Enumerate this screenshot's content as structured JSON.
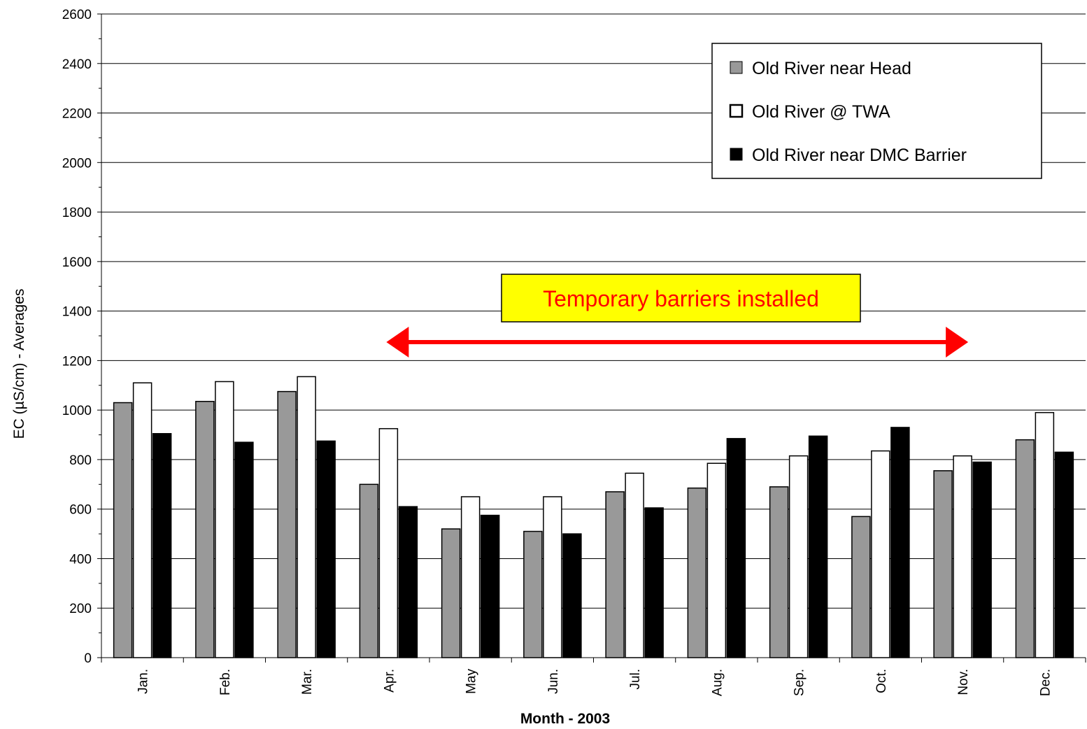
{
  "chart_data": {
    "type": "bar",
    "categories": [
      "Jan.",
      "Feb.",
      "Mar.",
      "Apr.",
      "May",
      "Jun.",
      "Jul.",
      "Aug.",
      "Sep.",
      "Oct.",
      "Nov.",
      "Dec."
    ],
    "series": [
      {
        "name": "Old River near Head",
        "color": "#999999",
        "values": [
          1030,
          1035,
          1075,
          700,
          520,
          510,
          670,
          685,
          690,
          570,
          755,
          880
        ]
      },
      {
        "name": "Old River @ TWA",
        "color": "#ffffff",
        "values": [
          1110,
          1115,
          1135,
          925,
          650,
          650,
          745,
          785,
          815,
          835,
          815,
          990
        ]
      },
      {
        "name": "Old River near DMC Barrier",
        "color": "#000000",
        "values": [
          905,
          870,
          875,
          610,
          575,
          500,
          605,
          885,
          895,
          930,
          790,
          830
        ]
      }
    ],
    "xlabel": "Month - 2003",
    "ylabel": "EC (µS/cm) - Averages",
    "ylim": [
      0,
      2600
    ],
    "yticks": [
      0,
      200,
      400,
      600,
      800,
      1000,
      1200,
      1400,
      1600,
      1800,
      2000,
      2200,
      2400,
      2600
    ],
    "grid": true,
    "legend_position": "top-right",
    "annotation": {
      "text": "Temporary barriers installed",
      "box_color": "#ffff00",
      "text_color": "#ff0000",
      "arrow_color": "#ff0000",
      "arrow_from_category": "Apr.",
      "arrow_to_category": "Nov."
    }
  }
}
